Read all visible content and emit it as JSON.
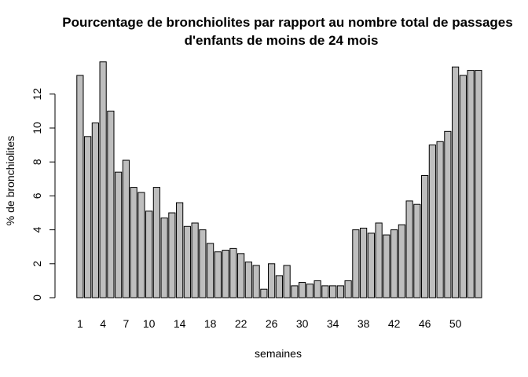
{
  "chart_data": {
    "type": "bar",
    "title_lines": [
      "Pourcentage de bronchiolites par rapport au nombre total de passages",
      "d'enfants de moins de 24 mois"
    ],
    "xlabel": "semaines",
    "ylabel": "% de bronchiolites",
    "ylim": [
      0,
      14
    ],
    "yticks": [
      0,
      2,
      4,
      6,
      8,
      10,
      12
    ],
    "categories": [
      "1",
      "2",
      "3",
      "4",
      "5",
      "6",
      "7",
      "8",
      "9",
      "10",
      "11",
      "12",
      "13",
      "14",
      "15",
      "16",
      "17",
      "18",
      "19",
      "20",
      "21",
      "22",
      "23",
      "24",
      "25",
      "26",
      "27",
      "28",
      "29",
      "30",
      "31",
      "32",
      "33",
      "34",
      "35",
      "36",
      "37",
      "38",
      "39",
      "40",
      "41",
      "42",
      "43",
      "44",
      "45",
      "46",
      "47",
      "48",
      "49",
      "50",
      "51",
      "52",
      "53"
    ],
    "xtick_labels": [
      "1",
      "4",
      "7",
      "10",
      "14",
      "18",
      "22",
      "26",
      "30",
      "34",
      "38",
      "42",
      "46",
      "50"
    ],
    "values": [
      13.1,
      9.5,
      10.3,
      13.9,
      11.0,
      7.4,
      8.1,
      6.5,
      6.2,
      5.1,
      6.5,
      4.7,
      5.0,
      5.6,
      4.2,
      4.4,
      4.0,
      3.2,
      2.7,
      2.8,
      2.9,
      2.6,
      2.1,
      1.9,
      0.5,
      2.0,
      1.3,
      1.9,
      0.7,
      0.9,
      0.8,
      1.0,
      0.7,
      0.7,
      0.7,
      1.0,
      4.0,
      4.1,
      3.8,
      4.4,
      3.7,
      4.0,
      4.3,
      5.7,
      5.5,
      7.2,
      9.0,
      9.2,
      9.8,
      13.6,
      13.1,
      13.4,
      13.4
    ],
    "bar_color": "#bebebe",
    "grid": false,
    "legend": "none"
  }
}
